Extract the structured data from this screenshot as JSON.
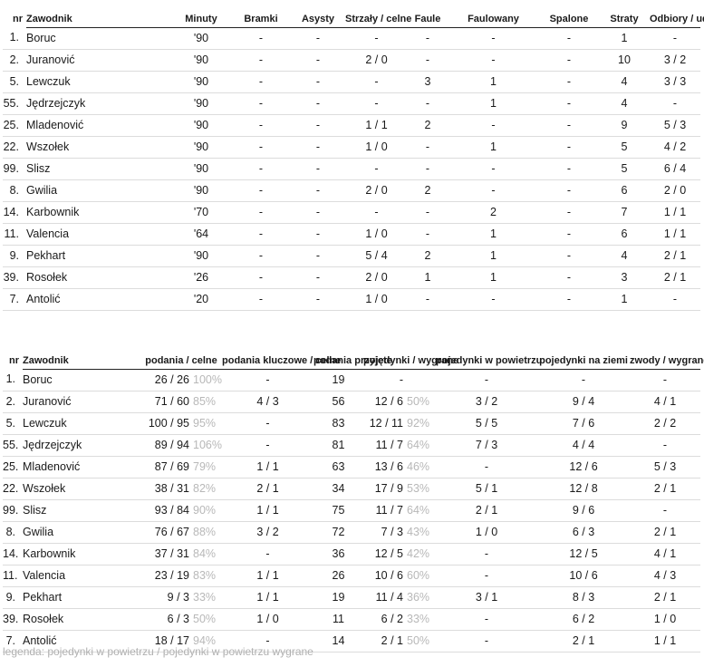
{
  "table1": {
    "headers": [
      "nr",
      "Zawodnik",
      "Minuty",
      "Bramki",
      "Asysty",
      "Strzały / celne",
      "Faule",
      "Faulowany",
      "Spalone",
      "Straty",
      "Odbiory / udane"
    ],
    "rows": [
      [
        "1.",
        "Boruc",
        "'90",
        "-",
        "-",
        "-",
        "-",
        "-",
        "-",
        "1",
        "-"
      ],
      [
        "2.",
        "Juranović",
        "'90",
        "-",
        "-",
        "2 / 0",
        "-",
        "-",
        "-",
        "10",
        "3 / 2"
      ],
      [
        "5.",
        "Lewczuk",
        "'90",
        "-",
        "-",
        "-",
        "3",
        "1",
        "-",
        "4",
        "3 / 3"
      ],
      [
        "55.",
        "Jędrzejczyk",
        "'90",
        "-",
        "-",
        "-",
        "-",
        "1",
        "-",
        "4",
        "-"
      ],
      [
        "25.",
        "Mladenović",
        "'90",
        "-",
        "-",
        "1 / 1",
        "2",
        "-",
        "-",
        "9",
        "5 / 3"
      ],
      [
        "22.",
        "Wszołek",
        "'90",
        "-",
        "-",
        "1 / 0",
        "-",
        "1",
        "-",
        "5",
        "4 / 2"
      ],
      [
        "99.",
        "Slisz",
        "'90",
        "-",
        "-",
        "-",
        "-",
        "-",
        "-",
        "5",
        "6 / 4"
      ],
      [
        "8.",
        "Gwilia",
        "'90",
        "-",
        "-",
        "2 / 0",
        "2",
        "-",
        "-",
        "6",
        "2 / 0"
      ],
      [
        "14.",
        "Karbownik",
        "'70",
        "-",
        "-",
        "-",
        "-",
        "2",
        "-",
        "7",
        "1 / 1"
      ],
      [
        "11.",
        "Valencia",
        "'64",
        "-",
        "-",
        "1 / 0",
        "-",
        "1",
        "-",
        "6",
        "1 / 1"
      ],
      [
        "9.",
        "Pekhart",
        "'90",
        "-",
        "-",
        "5 / 4",
        "2",
        "1",
        "-",
        "4",
        "2 / 1"
      ],
      [
        "39.",
        "Rosołek",
        "'26",
        "-",
        "-",
        "2 / 0",
        "1",
        "1",
        "-",
        "3",
        "2 / 1"
      ],
      [
        "7.",
        "Antolić",
        "'20",
        "-",
        "-",
        "1 / 0",
        "-",
        "-",
        "-",
        "1",
        "-"
      ]
    ]
  },
  "table2": {
    "headers": [
      "nr",
      "Zawodnik",
      "podania / celne",
      "podania kluczowe / celne",
      "podania przyjęte",
      "pojedynki / wygrane",
      "pojedynki w powietrzu",
      "pojedynki na ziemi",
      "zwody / wygrane"
    ],
    "rows": [
      [
        "1.",
        "Boruc",
        "26 / 26",
        "100%",
        "-",
        "19",
        "-",
        "",
        "-",
        "-",
        "-"
      ],
      [
        "2.",
        "Juranović",
        "71 / 60",
        "85%",
        "4 / 3",
        "56",
        "12 / 6",
        "50%",
        "3 / 2",
        "9 / 4",
        "4 / 1"
      ],
      [
        "5.",
        "Lewczuk",
        "100 / 95",
        "95%",
        "-",
        "83",
        "12 / 11",
        "92%",
        "5 / 5",
        "7 / 6",
        "2 / 2"
      ],
      [
        "55.",
        "Jędrzejczyk",
        "89 / 94",
        "106%",
        "-",
        "81",
        "11 / 7",
        "64%",
        "7 / 3",
        "4 / 4",
        "-"
      ],
      [
        "25.",
        "Mladenović",
        "87 / 69",
        "79%",
        "1 / 1",
        "63",
        "13 / 6",
        "46%",
        "-",
        "12 / 6",
        "5 / 3"
      ],
      [
        "22.",
        "Wszołek",
        "38 / 31",
        "82%",
        "2 / 1",
        "34",
        "17 / 9",
        "53%",
        "5 / 1",
        "12 / 8",
        "2 / 1"
      ],
      [
        "99.",
        "Slisz",
        "93 / 84",
        "90%",
        "1 / 1",
        "75",
        "11 / 7",
        "64%",
        "2 / 1",
        "9 / 6",
        "-"
      ],
      [
        "8.",
        "Gwilia",
        "76 / 67",
        "88%",
        "3 / 2",
        "72",
        "7 / 3",
        "43%",
        "1 / 0",
        "6 / 3",
        "2 / 1"
      ],
      [
        "14.",
        "Karbownik",
        "37 / 31",
        "84%",
        "-",
        "36",
        "12 / 5",
        "42%",
        "-",
        "12 / 5",
        "4 / 1"
      ],
      [
        "11.",
        "Valencia",
        "23 / 19",
        "83%",
        "1 / 1",
        "26",
        "10 / 6",
        "60%",
        "-",
        "10 / 6",
        "4 / 3"
      ],
      [
        "9.",
        "Pekhart",
        "9 / 3",
        "33%",
        "1 / 1",
        "19",
        "11 / 4",
        "36%",
        "3 / 1",
        "8 / 3",
        "2 / 1"
      ],
      [
        "39.",
        "Rosołek",
        "6 / 3",
        "50%",
        "1 / 0",
        "11",
        "6 / 2",
        "33%",
        "-",
        "6 / 2",
        "1 / 0"
      ],
      [
        "7.",
        "Antolić",
        "18 / 17",
        "94%",
        "-",
        "14",
        "2 / 1",
        "50%",
        "-",
        "2 / 1",
        "1 / 1"
      ]
    ]
  },
  "legend": "legenda: pojedynki w powietrzu / pojedynki w powietrzu wygrane"
}
